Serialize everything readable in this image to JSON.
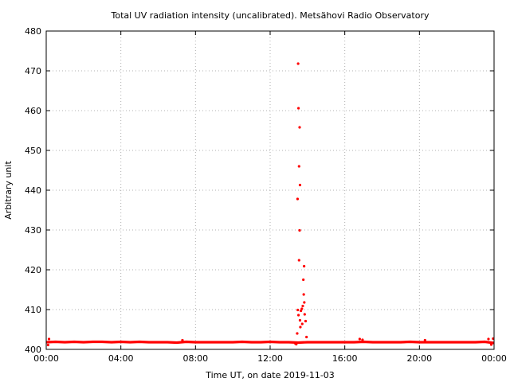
{
  "chart_data": {
    "type": "scatter",
    "title": "Total UV radiation intensity (uncalibrated). Metsähovi Radio Observatory",
    "xlabel": "Time UT, on date 2019-11-03",
    "ylabel": "Arbitrary unit",
    "x_unit": "hours UT",
    "xlim": [
      0,
      24
    ],
    "ylim": [
      400,
      480
    ],
    "x_ticks": [
      {
        "value": 0,
        "label": "00:00"
      },
      {
        "value": 4,
        "label": "04:00"
      },
      {
        "value": 8,
        "label": "08:00"
      },
      {
        "value": 12,
        "label": "12:00"
      },
      {
        "value": 16,
        "label": "16:00"
      },
      {
        "value": 20,
        "label": "20:00"
      },
      {
        "value": 24,
        "label": "00:00"
      }
    ],
    "y_ticks": [
      {
        "value": 400,
        "label": "400"
      },
      {
        "value": 410,
        "label": "410"
      },
      {
        "value": 420,
        "label": "420"
      },
      {
        "value": 430,
        "label": "430"
      },
      {
        "value": 440,
        "label": "440"
      },
      {
        "value": 450,
        "label": "450"
      },
      {
        "value": 460,
        "label": "460"
      },
      {
        "value": 470,
        "label": "470"
      },
      {
        "value": 480,
        "label": "480"
      }
    ],
    "grid": true,
    "grid_style": "dotted",
    "marker_color": "#ff0000",
    "baseline": {
      "x": [
        0,
        0.5,
        1,
        1.5,
        2,
        2.5,
        3,
        3.5,
        4,
        4.5,
        5,
        5.5,
        6,
        6.5,
        7,
        7.5,
        8,
        8.5,
        9,
        9.5,
        10,
        10.5,
        11,
        11.5,
        12,
        12.5,
        13,
        13.5,
        14,
        14.5,
        15,
        15.5,
        16,
        16.5,
        17,
        17.5,
        18,
        18.5,
        19,
        19.5,
        20,
        20.5,
        21,
        21.5,
        22,
        22.5,
        23,
        23.5,
        24
      ],
      "y": [
        401.8,
        401.9,
        401.8,
        401.9,
        401.8,
        401.9,
        401.9,
        401.8,
        401.9,
        401.8,
        401.9,
        401.8,
        401.8,
        401.8,
        401.7,
        401.9,
        401.8,
        401.8,
        401.8,
        401.8,
        401.8,
        401.9,
        401.8,
        401.8,
        401.9,
        401.8,
        401.8,
        401.7,
        401.8,
        401.8,
        401.8,
        401.8,
        401.8,
        401.8,
        401.9,
        401.8,
        401.8,
        401.8,
        401.8,
        401.9,
        401.8,
        401.8,
        401.8,
        401.8,
        401.8,
        401.8,
        401.8,
        401.9,
        401.6
      ]
    },
    "points": [
      {
        "x": 13.5,
        "y": 471.8
      },
      {
        "x": 13.52,
        "y": 460.6
      },
      {
        "x": 13.58,
        "y": 455.8
      },
      {
        "x": 13.55,
        "y": 446.0
      },
      {
        "x": 13.6,
        "y": 441.3
      },
      {
        "x": 13.47,
        "y": 437.8
      },
      {
        "x": 13.58,
        "y": 429.9
      },
      {
        "x": 13.55,
        "y": 422.4
      },
      {
        "x": 13.82,
        "y": 420.9
      },
      {
        "x": 13.78,
        "y": 417.5
      },
      {
        "x": 13.8,
        "y": 413.8
      },
      {
        "x": 13.83,
        "y": 411.8
      },
      {
        "x": 13.75,
        "y": 410.9
      },
      {
        "x": 13.48,
        "y": 409.9
      },
      {
        "x": 13.7,
        "y": 410.2
      },
      {
        "x": 13.65,
        "y": 409.7
      },
      {
        "x": 13.52,
        "y": 408.6
      },
      {
        "x": 13.85,
        "y": 408.8
      },
      {
        "x": 13.6,
        "y": 407.3
      },
      {
        "x": 13.9,
        "y": 407.1
      },
      {
        "x": 13.72,
        "y": 406.4
      },
      {
        "x": 13.62,
        "y": 405.6
      },
      {
        "x": 13.45,
        "y": 404.0
      },
      {
        "x": 13.95,
        "y": 403.1
      },
      {
        "x": 13.4,
        "y": 401.3
      },
      {
        "x": 13.35,
        "y": 401.5
      },
      {
        "x": 16.8,
        "y": 402.6
      },
      {
        "x": 16.95,
        "y": 402.4
      },
      {
        "x": 20.3,
        "y": 402.3
      },
      {
        "x": 7.3,
        "y": 402.3
      },
      {
        "x": 23.7,
        "y": 402.6
      },
      {
        "x": 23.85,
        "y": 401.2
      },
      {
        "x": 23.95,
        "y": 402.7
      },
      {
        "x": 0.1,
        "y": 401.1
      },
      {
        "x": 0.15,
        "y": 402.6
      }
    ]
  }
}
